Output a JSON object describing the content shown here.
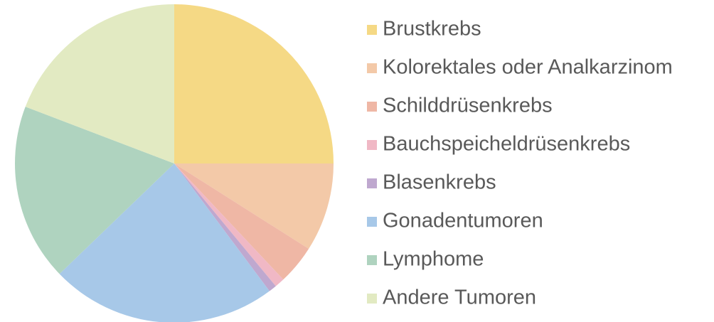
{
  "chart_data": {
    "type": "pie",
    "categories": [
      "Brustkrebs",
      "Kolorektales oder Analkarzinom",
      "Schilddrüsenkrebs",
      "Bauchspeicheldrüsenkrebs",
      "Blasenkrebs",
      "Gonadentumoren",
      "Lymphome",
      "Andere Tumoren"
    ],
    "values": [
      25,
      9,
      4,
      1,
      0.8,
      23,
      18,
      19.2
    ],
    "colors": [
      "#f5d985",
      "#f3c9a8",
      "#efb7a5",
      "#f0b8c5",
      "#bfa8cf",
      "#a7c8e8",
      "#afd3bf",
      "#e2eac2"
    ],
    "legend": "right"
  }
}
